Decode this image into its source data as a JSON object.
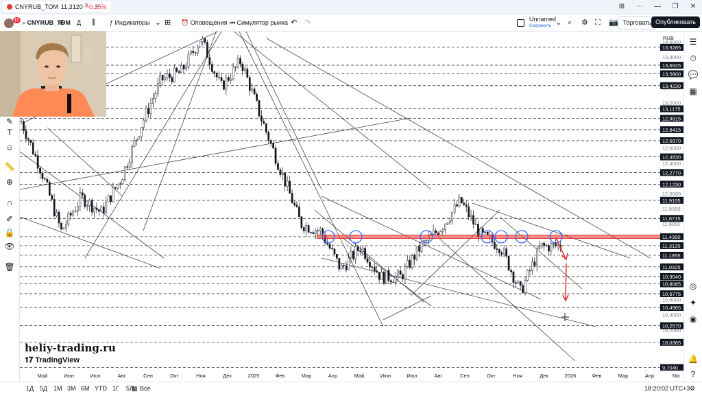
{
  "tab": {
    "symbol": "CNYRUB_TOM",
    "price": "11,3120",
    "change": "−0.35%"
  },
  "toolbar": {
    "avatar_badge": "11",
    "symbol": "CNYRUB_TOM",
    "interval": "Д",
    "indicators": "Индикаторы",
    "alerts": "Оповещения",
    "replay": "Симулятор рынка",
    "layout_name": "Unnamed",
    "layout_status": "Сохранить",
    "trade": "Торговать",
    "publish": "Опубликовать"
  },
  "price_scale": {
    "currency": "RUB",
    "plain_labels": [
      "14,0000",
      "13,8000",
      "13,4000",
      "13,2000",
      "12,6000",
      "12,4000",
      "12,0000",
      "11,8000",
      "11,6000",
      "10,6000",
      "10,4000",
      "10,2000"
    ],
    "level_labels": [
      "13,9285",
      "13,6925",
      "13,5800",
      "13,4230",
      "13,1175",
      "12,9915",
      "12,8415",
      "12,6970",
      "12,4830",
      "12,2770",
      "12,1230",
      "11,9105",
      "11,6715",
      "11,4300",
      "11,3120",
      "11,1855",
      "11,0325",
      "10,9040",
      "10,8085",
      "10,6775",
      "10,4965",
      "10,2570",
      "10,0365",
      "9,7040"
    ]
  },
  "time_scale": {
    "labels": [
      "Май",
      "Июн",
      "Июл",
      "Авг",
      "Сен",
      "Окт",
      "Ноя",
      "Дек",
      "2025",
      "Фев",
      "Мар",
      "Апр",
      "Май",
      "Июн",
      "Июл",
      "Авг",
      "Сен",
      "Окт",
      "Ноя",
      "Дек",
      "2026",
      "Фев",
      "Мар",
      "Апр",
      "Ма"
    ]
  },
  "bottom": {
    "ranges": [
      "1Д",
      "5Д",
      "1М",
      "3М",
      "6М",
      "YTD",
      "1Г",
      "5Л",
      "Все"
    ],
    "clock": "18:20:02 UTC+3"
  },
  "watermark": {
    "site": "heliy-trading.ru",
    "logo_text": "TradingView"
  },
  "colors": {
    "resistance_band": "#e53935",
    "circles": "#2962ff",
    "arrow": "#e53935",
    "candles": "#131722"
  },
  "chart_data": {
    "type": "candlestick",
    "x_range": [
      "Май 2024",
      "Апр 2026"
    ],
    "y_range": [
      9.7,
      14.1
    ],
    "close_series": [
      {
        "x": "Май 2024",
        "y": 12.95
      },
      {
        "x": "Июн 2024",
        "y": 12.3
      },
      {
        "x": "Июн 2024",
        "y": 11.5
      },
      {
        "x": "Июл 2024",
        "y": 11.95
      },
      {
        "x": "Авг 2024",
        "y": 11.75
      },
      {
        "x": "Сен 2024",
        "y": 12.2
      },
      {
        "x": "Сен 2024",
        "y": 12.9
      },
      {
        "x": "Окт 2024",
        "y": 13.5
      },
      {
        "x": "Ноя 2024",
        "y": 13.6
      },
      {
        "x": "Дек 2024",
        "y": 14.05
      },
      {
        "x": "Дек 2024",
        "y": 13.4
      },
      {
        "x": "2025",
        "y": 13.75
      },
      {
        "x": "Фев 2025",
        "y": 13.0
      },
      {
        "x": "Фев 2025",
        "y": 12.3
      },
      {
        "x": "Мар 2025",
        "y": 11.6
      },
      {
        "x": "Апр 2025",
        "y": 11.5
      },
      {
        "x": "Апр 2025",
        "y": 11.0
      },
      {
        "x": "Май 2025",
        "y": 11.3
      },
      {
        "x": "Июн 2025",
        "y": 10.9
      },
      {
        "x": "Июл 2025",
        "y": 10.9
      },
      {
        "x": "Авг 2025",
        "y": 11.3
      },
      {
        "x": "Сен 2025",
        "y": 11.55
      },
      {
        "x": "Сен 2025",
        "y": 11.9
      },
      {
        "x": "Окт 2025",
        "y": 11.45
      },
      {
        "x": "Ноя 2025",
        "y": 11.3
      },
      {
        "x": "Дек 2025",
        "y": 10.7
      },
      {
        "x": "Дек 2025",
        "y": 11.3
      },
      {
        "x": "2026",
        "y": 11.31
      }
    ],
    "horizontal_levels": [
      13.9285,
      13.6925,
      13.58,
      13.423,
      13.1175,
      12.9915,
      12.8415,
      12.697,
      12.483,
      12.277,
      12.123,
      11.9105,
      11.6715,
      11.43,
      11.312,
      11.1855,
      11.0325,
      10.904,
      10.8085,
      10.6775,
      10.4965,
      10.257,
      10.0365,
      9.704
    ],
    "resistance_zone": [
      11.41,
      11.45
    ],
    "last_price": 11.312
  }
}
